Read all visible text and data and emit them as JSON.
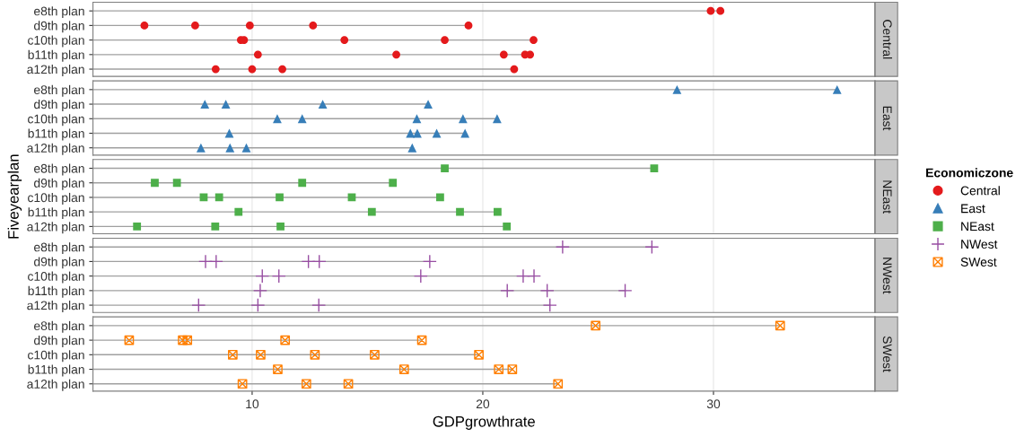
{
  "chart_data": [
    {
      "type": "scatter",
      "annotations": [
        "Central"
      ],
      "orientation": "horizontal",
      "marker": "circle",
      "legend": "right",
      "legend_title": "Economiczone",
      "grid": "x",
      "tick_labels": "y",
      "categories": [
        "e8th plan",
        "d9th plan",
        "c10th plan",
        "b11th plan",
        "a12th plan"
      ],
      "xlim": [
        3.1,
        37.0
      ],
      "xticks": [
        10,
        20,
        30
      ],
      "series": [
        {
          "name": "Central",
          "color": "#e41a1c",
          "values": [
            29.88,
            5.33,
            9.51,
            10.25,
            8.42
          ]
        },
        {
          "color": "#e41a1c",
          "values": [
            30.3,
            7.53,
            9.65,
            16.25,
            10.0
          ]
        },
        {
          "color": "#e41a1c",
          "values": [
            null,
            9.9,
            14.0,
            20.91,
            11.31
          ]
        },
        {
          "color": "#e41a1c",
          "values": [
            null,
            12.64,
            18.35,
            21.83,
            21.36
          ]
        },
        {
          "color": "#e41a1c",
          "values": [
            null,
            19.38,
            22.2,
            22.05,
            null
          ]
        }
      ]
    },
    {
      "type": "scatter",
      "annotations": [
        "East"
      ],
      "orientation": "horizontal",
      "marker": "triangle",
      "legend": "right",
      "grid": "x",
      "tick_labels": "y",
      "categories": [
        "e8th plan",
        "d9th plan",
        "c10th plan",
        "b11th plan",
        "a12th plan"
      ],
      "xlim": [
        3.1,
        37.0
      ],
      "xticks": [
        10,
        20,
        30
      ],
      "series": [
        {
          "name": "East",
          "color": "#377eb8",
          "values": [
            28.42,
            7.95,
            11.09,
            9.01,
            7.78
          ]
        },
        {
          "color": "#377eb8",
          "values": [
            35.36,
            8.86,
            12.17,
            16.86,
            9.04
          ]
        },
        {
          "color": "#377eb8",
          "values": [
            null,
            13.06,
            17.14,
            17.16,
            9.75
          ]
        },
        {
          "color": "#377eb8",
          "values": [
            null,
            17.63,
            19.14,
            18.0,
            16.94
          ]
        },
        {
          "color": "#377eb8",
          "values": [
            null,
            null,
            20.62,
            19.23,
            null
          ]
        }
      ]
    },
    {
      "type": "scatter",
      "annotations": [
        "NEast"
      ],
      "ylabel": "Fiveyearplan",
      "orientation": "horizontal",
      "marker": "square",
      "legend": "right",
      "grid": "x",
      "tick_labels": "y",
      "categories": [
        "e8th plan",
        "d9th plan",
        "c10th plan",
        "b11th plan",
        "a12th plan"
      ],
      "xlim": [
        3.1,
        37.0
      ],
      "xticks": [
        10,
        20,
        30
      ],
      "series": [
        {
          "name": "NEast",
          "color": "#4daf4a",
          "values": [
            18.35,
            5.78,
            7.9,
            9.41,
            5.01
          ]
        },
        {
          "color": "#4daf4a",
          "values": [
            27.43,
            6.74,
            8.57,
            15.19,
            8.4
          ]
        },
        {
          "color": "#4daf4a",
          "values": [
            null,
            12.17,
            11.19,
            19.01,
            11.23
          ]
        },
        {
          "color": "#4daf4a",
          "values": [
            null,
            16.1,
            14.32,
            20.64,
            21.04
          ]
        },
        {
          "color": "#4daf4a",
          "values": [
            null,
            null,
            18.15,
            null,
            null
          ]
        }
      ]
    },
    {
      "type": "scatter",
      "annotations": [
        "NWest"
      ],
      "orientation": "horizontal",
      "marker": "cross",
      "legend": "right",
      "grid": "x",
      "tick_labels": "y",
      "categories": [
        "e8th plan",
        "d9th plan",
        "c10th plan",
        "b11th plan",
        "a12th plan"
      ],
      "xlim": [
        3.1,
        37.0
      ],
      "xticks": [
        10,
        20,
        30
      ],
      "series": [
        {
          "name": "NWest",
          "color": "#984ea3",
          "values": [
            23.46,
            7.98,
            10.44,
            10.35,
            7.68
          ]
        },
        {
          "color": "#984ea3",
          "values": [
            27.33,
            8.44,
            11.16,
            21.06,
            10.25
          ]
        },
        {
          "color": "#984ea3",
          "values": [
            null,
            12.44,
            17.31,
            22.79,
            12.89
          ]
        },
        {
          "color": "#984ea3",
          "values": [
            null,
            12.91,
            21.75,
            26.17,
            22.91
          ]
        },
        {
          "color": "#984ea3",
          "values": [
            null,
            17.7,
            22.22,
            null,
            null
          ]
        }
      ]
    },
    {
      "type": "scatter",
      "annotations": [
        "SWest"
      ],
      "xlabel": "GDPgrowthrate",
      "orientation": "horizontal",
      "marker": "cross",
      "legend": "right",
      "grid": "x",
      "categories": [
        "e8th plan",
        "d9th plan",
        "c10th plan",
        "b11th plan",
        "a12th plan"
      ],
      "xlim": [
        3.1,
        37.0
      ],
      "xticks": [
        10,
        20,
        30
      ],
      "series": [
        {
          "name": "SWest",
          "color": "#ff7f00",
          "values": [
            24.89,
            4.67,
            9.16,
            11.11,
            9.58
          ]
        },
        {
          "color": "#ff7f00",
          "values": [
            32.89,
            6.99,
            10.37,
            16.59,
            12.35
          ]
        },
        {
          "color": "#ff7f00",
          "values": [
            null,
            7.19,
            12.72,
            20.69,
            14.17
          ]
        },
        {
          "color": "#ff7f00",
          "values": [
            null,
            11.43,
            15.31,
            21.28,
            23.26
          ]
        },
        {
          "color": "#ff7f00",
          "values": [
            null,
            17.36,
            19.83,
            null,
            null
          ]
        }
      ]
    }
  ]
}
